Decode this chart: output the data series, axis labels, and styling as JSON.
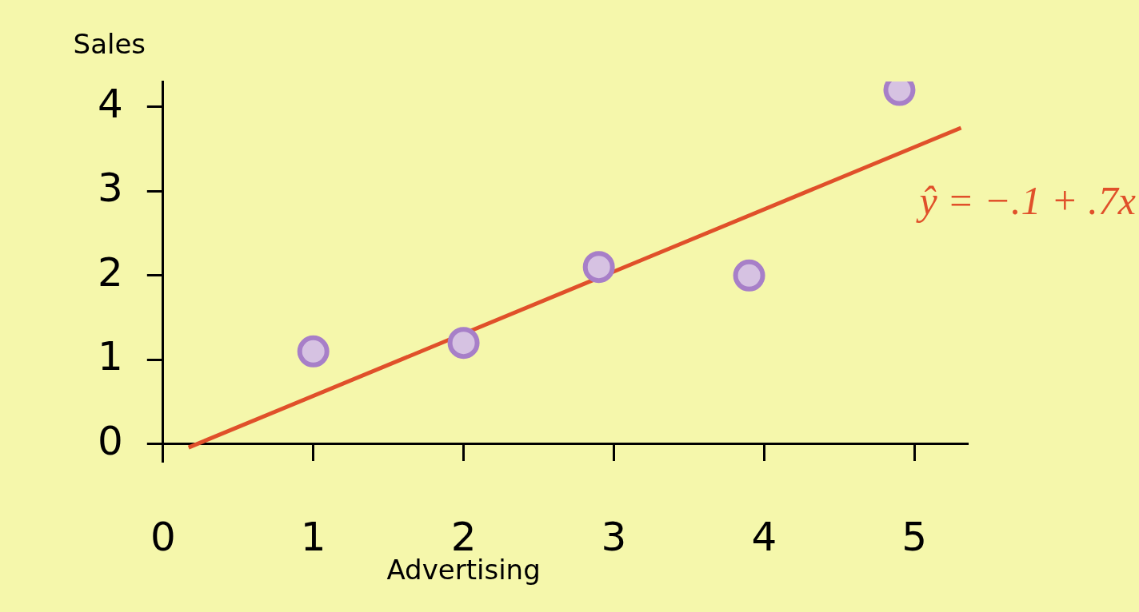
{
  "chart_data": {
    "type": "scatter",
    "xlabel": "Advertising",
    "ylabel": "Sales",
    "legend": false,
    "grid": false,
    "xlim": [
      0,
      5.35
    ],
    "ylim": [
      -0.2,
      4.3
    ],
    "xticks": [
      0,
      1,
      2,
      3,
      4,
      5
    ],
    "yticks": [
      0,
      1,
      2,
      3,
      4
    ],
    "series": [
      {
        "type": "scatter",
        "marker": "circle",
        "color": "#a77fc8",
        "x": [
          1.0,
          2.0,
          2.9,
          3.9,
          4.9
        ],
        "values": [
          1.1,
          1.2,
          2.1,
          2.0,
          4.2
        ]
      },
      {
        "type": "line",
        "color": "#e0502a",
        "x": [
          0.17,
          5.31
        ],
        "values": [
          -0.04,
          3.75
        ]
      }
    ],
    "annotations": [
      "ŷ = −.1 + .7x"
    ]
  }
}
